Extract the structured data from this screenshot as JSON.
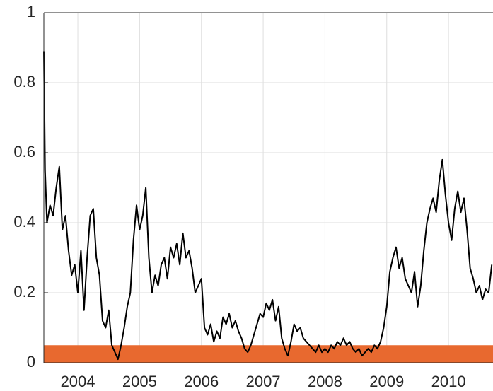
{
  "chart_data": {
    "type": "line",
    "x": [
      2003.45,
      2003.47,
      2003.5,
      2003.55,
      2003.6,
      2003.65,
      2003.7,
      2003.75,
      2003.8,
      2003.85,
      2003.9,
      2003.95,
      2004.0,
      2004.05,
      2004.1,
      2004.15,
      2004.2,
      2004.25,
      2004.3,
      2004.35,
      2004.4,
      2004.45,
      2004.5,
      2004.55,
      2004.6,
      2004.65,
      2004.7,
      2004.75,
      2004.8,
      2004.85,
      2004.9,
      2004.95,
      2005.0,
      2005.05,
      2005.1,
      2005.15,
      2005.2,
      2005.25,
      2005.3,
      2005.35,
      2005.4,
      2005.45,
      2005.5,
      2005.55,
      2005.6,
      2005.65,
      2005.7,
      2005.75,
      2005.8,
      2005.85,
      2005.9,
      2005.95,
      2006.0,
      2006.05,
      2006.1,
      2006.15,
      2006.2,
      2006.25,
      2006.3,
      2006.35,
      2006.4,
      2006.45,
      2006.5,
      2006.55,
      2006.6,
      2006.65,
      2006.7,
      2006.75,
      2006.8,
      2006.85,
      2006.9,
      2006.95,
      2007.0,
      2007.05,
      2007.1,
      2007.15,
      2007.2,
      2007.25,
      2007.3,
      2007.35,
      2007.4,
      2007.45,
      2007.5,
      2007.55,
      2007.6,
      2007.65,
      2007.7,
      2007.75,
      2007.8,
      2007.85,
      2007.9,
      2007.95,
      2008.0,
      2008.05,
      2008.1,
      2008.15,
      2008.2,
      2008.25,
      2008.3,
      2008.35,
      2008.4,
      2008.45,
      2008.5,
      2008.55,
      2008.6,
      2008.65,
      2008.7,
      2008.75,
      2008.8,
      2008.85,
      2008.9,
      2008.95,
      2009.0,
      2009.05,
      2009.1,
      2009.15,
      2009.2,
      2009.25,
      2009.3,
      2009.35,
      2009.4,
      2009.45,
      2009.5,
      2009.55,
      2009.6,
      2009.65,
      2009.7,
      2009.75,
      2009.8,
      2009.85,
      2009.9,
      2009.95,
      2010.0,
      2010.05,
      2010.1,
      2010.15,
      2010.2,
      2010.25,
      2010.3,
      2010.35,
      2010.4,
      2010.45,
      2010.5,
      2010.55,
      2010.6,
      2010.65,
      2010.7
    ],
    "series": [
      {
        "color": "#000000",
        "values": [
          0.89,
          0.55,
          0.4,
          0.45,
          0.42,
          0.5,
          0.56,
          0.38,
          0.42,
          0.32,
          0.25,
          0.28,
          0.2,
          0.32,
          0.15,
          0.3,
          0.42,
          0.44,
          0.3,
          0.25,
          0.12,
          0.1,
          0.15,
          0.05,
          0.03,
          0.01,
          0.05,
          0.1,
          0.16,
          0.2,
          0.35,
          0.45,
          0.38,
          0.42,
          0.5,
          0.3,
          0.2,
          0.25,
          0.22,
          0.28,
          0.3,
          0.24,
          0.33,
          0.3,
          0.34,
          0.28,
          0.37,
          0.3,
          0.32,
          0.27,
          0.2,
          0.22,
          0.24,
          0.1,
          0.08,
          0.11,
          0.06,
          0.09,
          0.07,
          0.13,
          0.11,
          0.14,
          0.1,
          0.12,
          0.09,
          0.07,
          0.04,
          0.03,
          0.05,
          0.08,
          0.11,
          0.14,
          0.13,
          0.17,
          0.15,
          0.18,
          0.12,
          0.16,
          0.07,
          0.04,
          0.02,
          0.06,
          0.11,
          0.09,
          0.1,
          0.07,
          0.06,
          0.05,
          0.04,
          0.03,
          0.05,
          0.03,
          0.04,
          0.03,
          0.05,
          0.04,
          0.06,
          0.05,
          0.07,
          0.05,
          0.06,
          0.04,
          0.03,
          0.04,
          0.02,
          0.03,
          0.04,
          0.03,
          0.05,
          0.04,
          0.06,
          0.1,
          0.16,
          0.26,
          0.3,
          0.33,
          0.27,
          0.3,
          0.24,
          0.22,
          0.2,
          0.26,
          0.16,
          0.22,
          0.32,
          0.4,
          0.44,
          0.47,
          0.43,
          0.52,
          0.58,
          0.48,
          0.4,
          0.35,
          0.44,
          0.49,
          0.43,
          0.47,
          0.38,
          0.27,
          0.24,
          0.2,
          0.22,
          0.18,
          0.21,
          0.2,
          0.28
        ]
      }
    ],
    "shaded_band": [
      0,
      0.05
    ],
    "band_color": "#e8692f",
    "xlim": [
      2003.45,
      2010.72
    ],
    "xticks": [
      2004,
      2005,
      2006,
      2007,
      2008,
      2009,
      2010
    ],
    "ylim": [
      0,
      1
    ],
    "yticks": [
      0,
      0.2,
      0.4,
      0.6,
      0.8,
      1
    ],
    "grid": true
  }
}
